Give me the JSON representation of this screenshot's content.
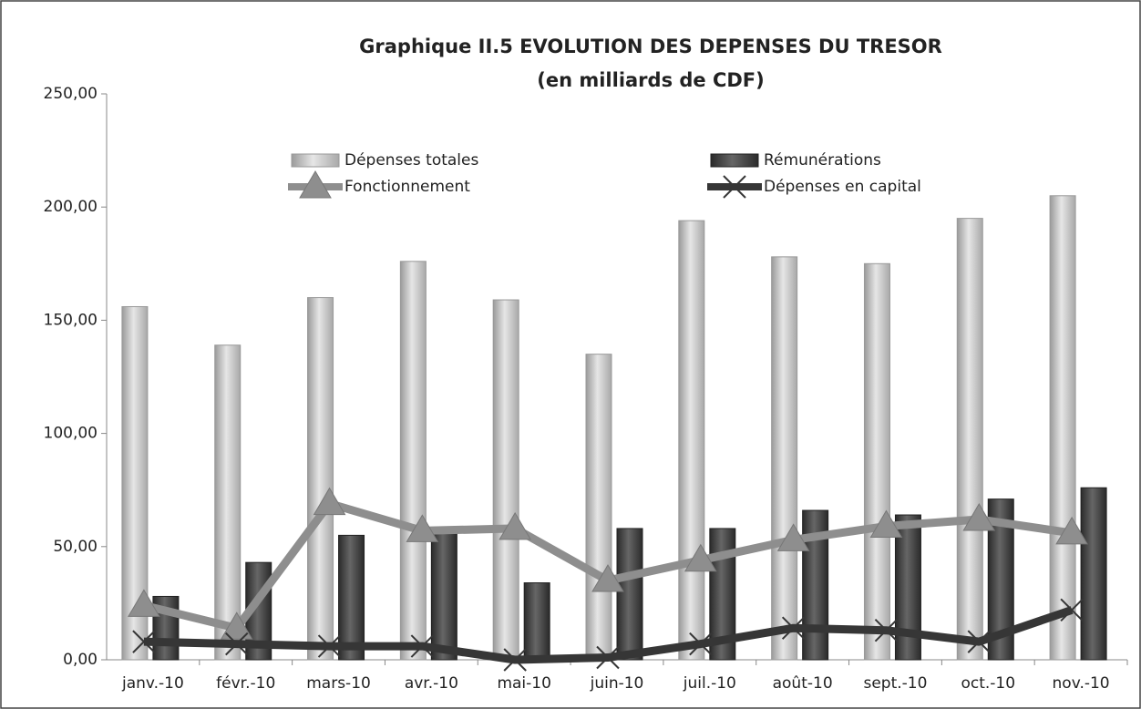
{
  "chart_data": {
    "type": "bar-line",
    "title": "Graphique II.5  EVOLUTION DES DEPENSES DU TRESOR",
    "subtitle": "(en milliards de CDF)",
    "categories": [
      "janv.-10",
      "févr.-10",
      "mars-10",
      "avr.-10",
      "mai-10",
      "juin-10",
      "juil.-10",
      "août-10",
      "sept.-10",
      "oct.-10",
      "nov.-10"
    ],
    "series": [
      {
        "name": "Dépenses totales",
        "kind": "bar",
        "color": "#c4c4c4",
        "values": [
          156,
          139,
          160,
          176,
          159,
          135,
          194,
          178,
          175,
          195,
          205
        ]
      },
      {
        "name": "Rémunérations",
        "kind": "bar",
        "color": "#3f3f3f",
        "values": [
          28,
          43,
          55,
          56,
          34,
          58,
          58,
          66,
          64,
          71,
          76
        ]
      },
      {
        "name": "Fonctionnement",
        "kind": "line",
        "marker": "triangle",
        "color": "#8e8e8e",
        "values": [
          24,
          14,
          69,
          57,
          58,
          35,
          44,
          53,
          59,
          62,
          56
        ]
      },
      {
        "name": "Dépenses en capital",
        "kind": "line",
        "marker": "x",
        "color": "#363636",
        "values": [
          8,
          7,
          6,
          6,
          0,
          1,
          7,
          14,
          13,
          8,
          22
        ]
      }
    ],
    "ylim": [
      0,
      250
    ],
    "yticks": [
      {
        "value": 0,
        "label": "0,00"
      },
      {
        "value": 50,
        "label": "50,00"
      },
      {
        "value": 100,
        "label": "100,00"
      },
      {
        "value": 150,
        "label": "150,00"
      },
      {
        "value": 200,
        "label": "200,00"
      },
      {
        "value": 250,
        "label": "250,00"
      }
    ],
    "grid": false
  }
}
